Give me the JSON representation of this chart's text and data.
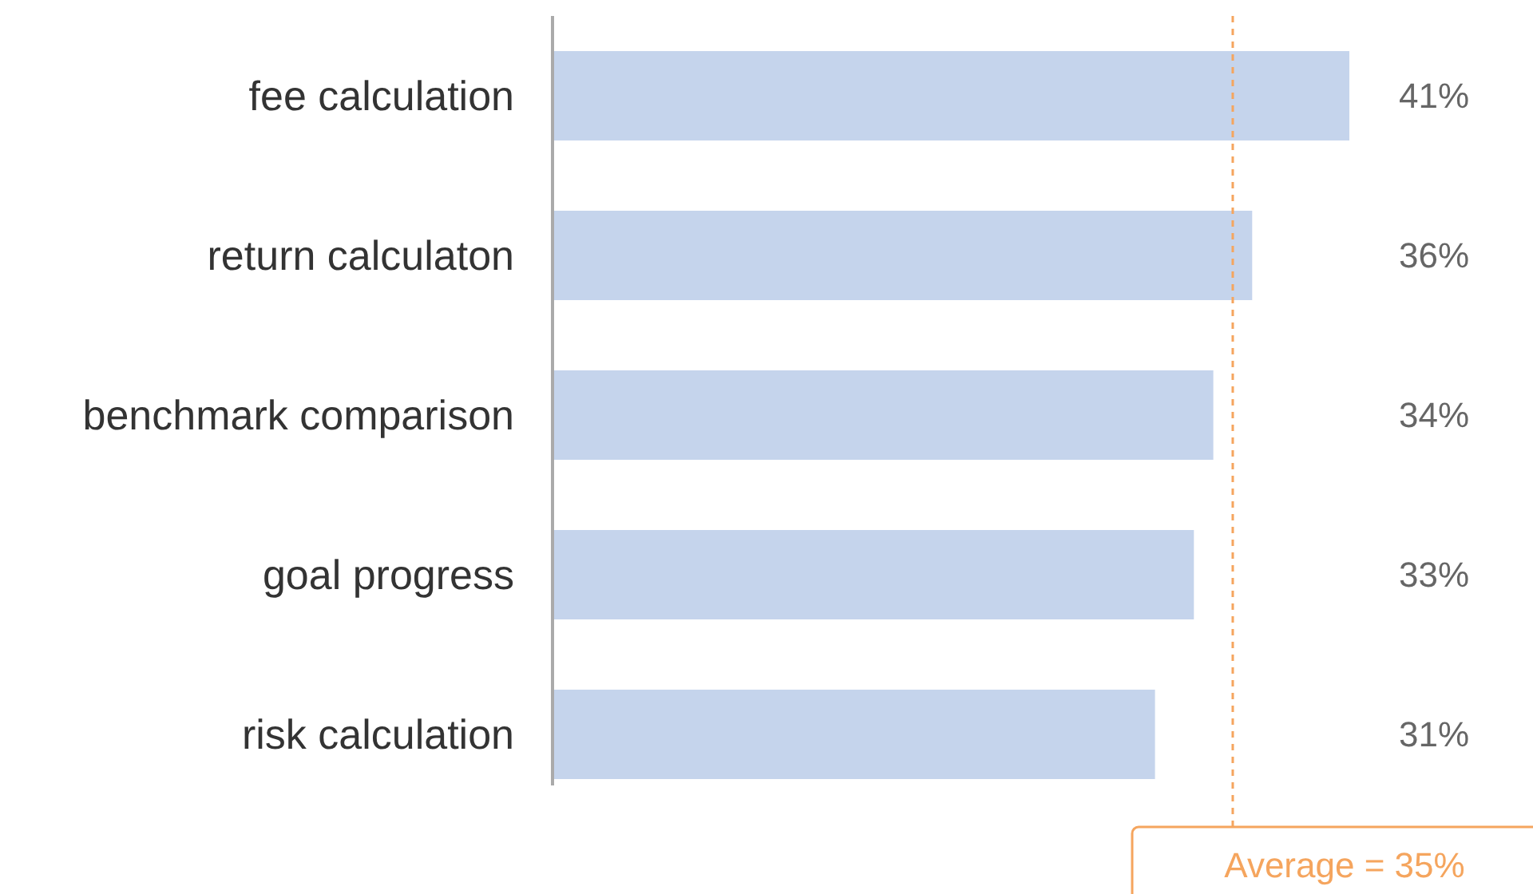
{
  "chart_data": {
    "type": "bar",
    "orientation": "horizontal",
    "categories": [
      "fee calculation",
      "return calculaton",
      "benchmark comparison",
      "goal progress",
      "risk calculation"
    ],
    "values": [
      41,
      36,
      34,
      33,
      31
    ],
    "color": "#c5d4ec",
    "value_labels": [
      "41%",
      "36%",
      "34%",
      "33%",
      "31%"
    ],
    "ref_lines": [
      {
        "axis": "x",
        "value": 35,
        "label": "Average = 35%",
        "color": "#f5a55e",
        "line_style": "dashed"
      }
    ]
  }
}
